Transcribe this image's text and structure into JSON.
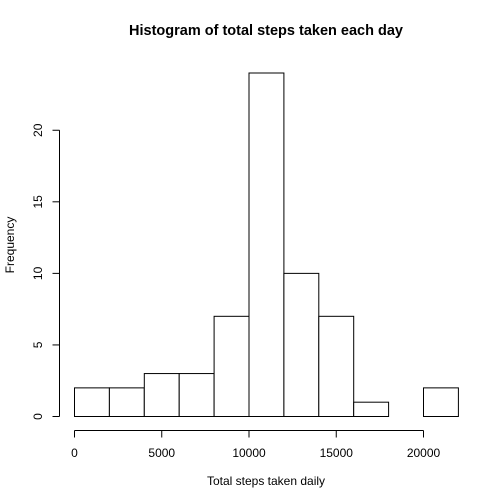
{
  "chart_data": {
    "type": "bar",
    "subtype": "histogram",
    "title": "Histogram of total steps taken each day",
    "xlabel": "Total steps taken daily",
    "ylabel": "Frequency",
    "bins": [
      {
        "from": 0,
        "to": 2000,
        "count": 2
      },
      {
        "from": 2000,
        "to": 4000,
        "count": 2
      },
      {
        "from": 4000,
        "to": 6000,
        "count": 3
      },
      {
        "from": 6000,
        "to": 8000,
        "count": 3
      },
      {
        "from": 8000,
        "to": 10000,
        "count": 7
      },
      {
        "from": 10000,
        "to": 12000,
        "count": 24
      },
      {
        "from": 12000,
        "to": 14000,
        "count": 10
      },
      {
        "from": 14000,
        "to": 16000,
        "count": 7
      },
      {
        "from": 16000,
        "to": 18000,
        "count": 1
      },
      {
        "from": 18000,
        "to": 20000,
        "count": 0
      },
      {
        "from": 20000,
        "to": 22000,
        "count": 2
      }
    ],
    "xticks": [
      0,
      5000,
      10000,
      15000,
      20000
    ],
    "yticks": [
      0,
      5,
      10,
      15,
      20
    ],
    "xlim": [
      0,
      20000
    ],
    "ylim": [
      0,
      24
    ],
    "bar_fill": "#ffffff",
    "bar_stroke": "#000000",
    "grid": false,
    "legend": "none"
  }
}
